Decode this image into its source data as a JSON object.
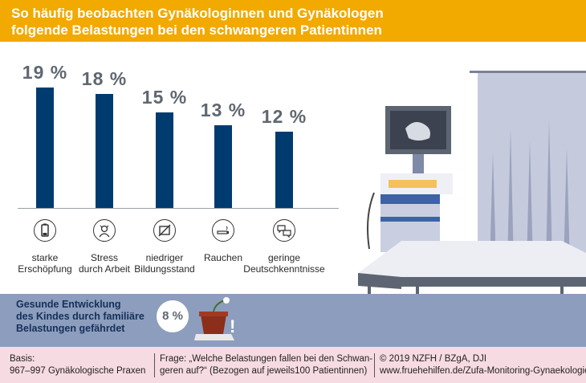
{
  "title": {
    "line1": "So häufig beobachten Gynäkologinnen und Gynäkologen",
    "line2": "folgende Belastungen bei den schwangeren Patientinnen"
  },
  "chart_data": {
    "type": "bar",
    "categories": [
      "starke Erschöpfung",
      "Stress durch Arbeit",
      "niedriger Bildungsstand",
      "Rauchen",
      "geringe Deutschkenntnisse"
    ],
    "values": [
      19,
      18,
      15,
      13,
      12
    ],
    "value_labels": [
      "19 %",
      "18 %",
      "15 %",
      "13 %",
      "12 %"
    ],
    "ylim": [
      0,
      20
    ],
    "bar_color": "#003b6f",
    "grid": false
  },
  "categories_display": [
    {
      "line1": "starke",
      "line2": "Erschöpfung",
      "icon": "battery-low-icon"
    },
    {
      "line1": "Stress",
      "line2": "durch Arbeit",
      "icon": "stressed-person-icon"
    },
    {
      "line1": "niedriger",
      "line2": "Bildungsstand",
      "icon": "crossed-book-icon"
    },
    {
      "line1": "Rauchen",
      "line2": "",
      "icon": "cigarette-icon"
    },
    {
      "line1": "geringe",
      "line2": "Deutschkenntnisse",
      "icon": "speech-bubbles-icon"
    }
  ],
  "band": {
    "line1": "Gesunde Entwicklung",
    "line2": "des Kindes durch familiäre",
    "line3": "Belastungen gefährdet",
    "value": "8 %",
    "exclaim": "!"
  },
  "footer": {
    "basis_line1": "Basis:",
    "basis_line2": "967–997 Gynäkologische Praxen",
    "frage_line1": "Frage: „Welche Belastungen fallen bei den Schwan-",
    "frage_line2": "geren auf?“ (Bezogen auf jeweils100 Patientinnen)",
    "source_line1": "© 2019 NZFH / BZgA, DJI",
    "source_line2": "www.fruehehilfen.de/Zufa-Monitoring-Gynaekologie"
  },
  "colors": {
    "title_bg": "#f2a900",
    "band_bg": "#8d9dbd",
    "footer_bg": "#f7dbe2"
  }
}
